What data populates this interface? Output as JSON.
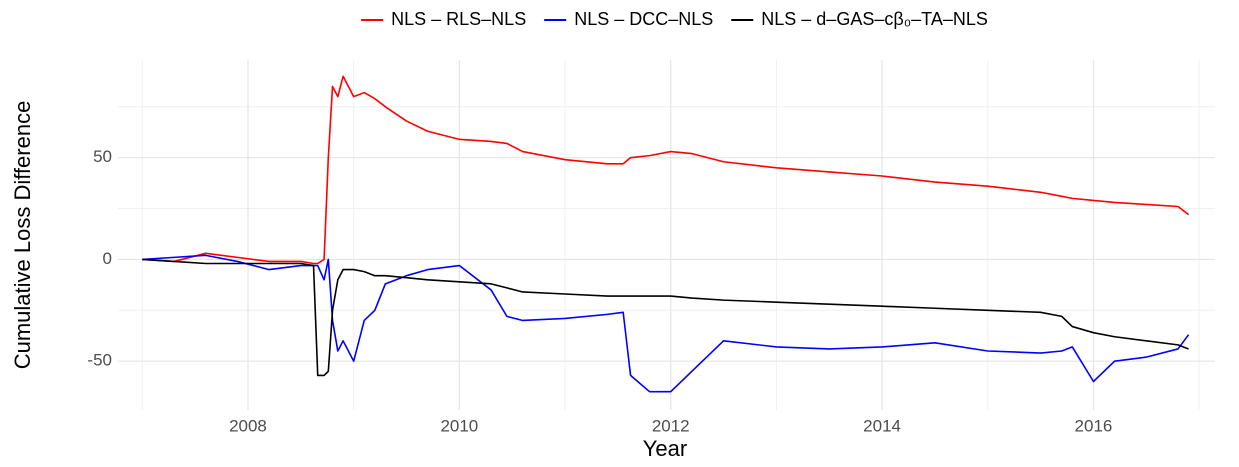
{
  "chart_data": {
    "type": "line",
    "x_label": "Year",
    "y_label": "Cumulative Loss Difference",
    "x": [
      2007.0,
      2007.3,
      2007.6,
      2007.9,
      2008.2,
      2008.5,
      2008.62,
      2008.66,
      2008.72,
      2008.76,
      2008.8,
      2008.85,
      2008.9,
      2009.0,
      2009.1,
      2009.2,
      2009.3,
      2009.5,
      2009.7,
      2010.0,
      2010.3,
      2010.45,
      2010.6,
      2011.0,
      2011.4,
      2011.55,
      2011.62,
      2011.8,
      2012.0,
      2012.2,
      2012.5,
      2013.0,
      2013.5,
      2014.0,
      2014.5,
      2015.0,
      2015.5,
      2015.7,
      2015.8,
      2016.0,
      2016.2,
      2016.5,
      2016.8,
      2016.9
    ],
    "series": [
      {
        "name": "NLS – RLS–NLS",
        "color": "#ff0000",
        "values": [
          0,
          -1,
          3,
          1,
          -1,
          -1,
          -2,
          -2,
          0,
          50,
          85,
          80,
          90,
          80,
          82,
          79,
          75,
          68,
          63,
          59,
          58,
          57,
          53,
          49,
          47,
          47,
          50,
          51,
          53,
          52,
          48,
          45,
          43,
          41,
          38,
          36,
          33,
          31,
          30,
          29,
          28,
          27,
          26,
          22
        ]
      },
      {
        "name": "NLS – DCC–NLS",
        "color": "#0000ff",
        "values": [
          0,
          1,
          2,
          -1,
          -5,
          -3,
          -3,
          -3,
          -10,
          0,
          -30,
          -45,
          -40,
          -50,
          -30,
          -25,
          -12,
          -8,
          -5,
          -3,
          -15,
          -28,
          -30,
          -29,
          -27,
          -26,
          -57,
          -65,
          -65,
          -55,
          -40,
          -43,
          -44,
          -43,
          -41,
          -45,
          -46,
          -45,
          -43,
          -60,
          -50,
          -48,
          -44,
          -37
        ]
      },
      {
        "name": "NLS – d–GAS–cβ₀–TA–NLS",
        "color": "#000000",
        "values": [
          0,
          -1,
          -2,
          -2,
          -2,
          -2,
          -3,
          -57,
          -57,
          -55,
          -25,
          -10,
          -5,
          -5,
          -6,
          -8,
          -8,
          -9,
          -10,
          -11,
          -12,
          -14,
          -16,
          -17,
          -18,
          -18,
          -18,
          -18,
          -18,
          -19,
          -20,
          -21,
          -22,
          -23,
          -24,
          -25,
          -26,
          -28,
          -33,
          -36,
          -38,
          -40,
          -42,
          -44
        ]
      }
    ],
    "xlim": [
      2006.77,
      2017.15
    ],
    "xticks": [
      2008,
      2010,
      2012,
      2014,
      2016
    ],
    "ylim": [
      -74,
      98
    ],
    "yticks": [
      -50,
      0,
      50
    ],
    "grid": true,
    "legend": "top"
  }
}
